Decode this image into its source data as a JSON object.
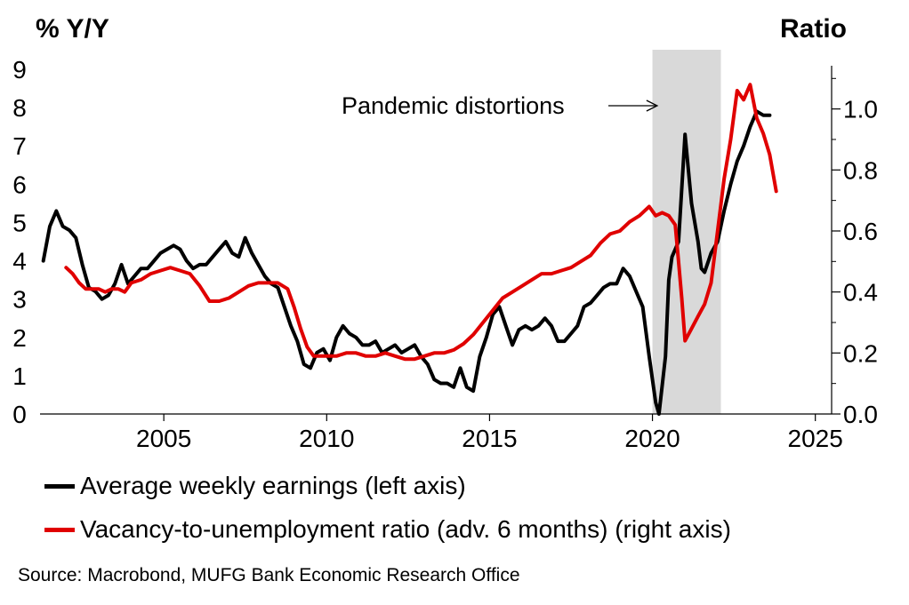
{
  "chart_data": {
    "type": "line",
    "left_axis_label": "% Y/Y",
    "right_axis_label": "Ratio",
    "x_range": [
      2001.2,
      2025.5
    ],
    "x_ticks": [
      2005,
      2010,
      2015,
      2020,
      2025
    ],
    "y_left_range": [
      0,
      9
    ],
    "y_left_ticks": [
      0,
      1,
      2,
      3,
      4,
      5,
      6,
      7,
      8,
      9
    ],
    "y_right_range": [
      0,
      1.13
    ],
    "y_right_ticks": [
      "0.0",
      "0.2",
      "0.4",
      "0.6",
      "0.8",
      "1.0"
    ],
    "shaded_region": {
      "from": 2020.0,
      "to": 2022.1,
      "color": "#d9d9d9"
    },
    "annotation": {
      "text": "Pandemic distortions",
      "points_to": 2020.2
    },
    "grid": false,
    "legend_placement": "bottom",
    "series": [
      {
        "name": "Average weekly earnings (left axis)",
        "axis": "left",
        "color": "#000000",
        "x": [
          2001.3,
          2001.5,
          2001.7,
          2001.9,
          2002.1,
          2002.3,
          2002.5,
          2002.7,
          2002.9,
          2003.1,
          2003.3,
          2003.5,
          2003.7,
          2003.9,
          2004.1,
          2004.3,
          2004.5,
          2004.7,
          2004.9,
          2005.1,
          2005.3,
          2005.5,
          2005.7,
          2005.9,
          2006.1,
          2006.3,
          2006.5,
          2006.7,
          2006.9,
          2007.1,
          2007.3,
          2007.5,
          2007.7,
          2007.9,
          2008.1,
          2008.3,
          2008.5,
          2008.7,
          2008.9,
          2009.1,
          2009.3,
          2009.5,
          2009.7,
          2009.9,
          2010.1,
          2010.3,
          2010.5,
          2010.7,
          2010.9,
          2011.1,
          2011.3,
          2011.5,
          2011.7,
          2011.9,
          2012.1,
          2012.3,
          2012.5,
          2012.7,
          2012.9,
          2013.1,
          2013.3,
          2013.5,
          2013.7,
          2013.9,
          2014.1,
          2014.3,
          2014.5,
          2014.7,
          2014.9,
          2015.1,
          2015.3,
          2015.5,
          2015.7,
          2015.9,
          2016.1,
          2016.3,
          2016.5,
          2016.7,
          2016.9,
          2017.1,
          2017.3,
          2017.5,
          2017.7,
          2017.9,
          2018.1,
          2018.3,
          2018.5,
          2018.7,
          2018.9,
          2019.1,
          2019.3,
          2019.5,
          2019.7,
          2019.9,
          2020.1,
          2020.2,
          2020.4,
          2020.5,
          2020.6,
          2020.8,
          2021.0,
          2021.2,
          2021.4,
          2021.5,
          2021.6,
          2021.8,
          2022.0,
          2022.2,
          2022.4,
          2022.6,
          2022.8,
          2023.0,
          2023.2,
          2023.4,
          2023.6
        ],
        "values": [
          4.0,
          4.9,
          5.3,
          4.9,
          4.8,
          4.6,
          3.9,
          3.3,
          3.2,
          3.0,
          3.1,
          3.4,
          3.9,
          3.4,
          3.6,
          3.8,
          3.8,
          4.0,
          4.2,
          4.3,
          4.4,
          4.3,
          4.0,
          3.8,
          3.9,
          3.9,
          4.1,
          4.3,
          4.5,
          4.2,
          4.1,
          4.6,
          4.2,
          3.9,
          3.6,
          3.4,
          3.3,
          2.8,
          2.3,
          1.9,
          1.3,
          1.2,
          1.6,
          1.7,
          1.4,
          2.0,
          2.3,
          2.1,
          2.0,
          1.8,
          1.8,
          1.9,
          1.6,
          1.7,
          1.8,
          1.6,
          1.7,
          1.8,
          1.5,
          1.3,
          0.9,
          0.8,
          0.8,
          0.7,
          1.2,
          0.7,
          0.6,
          1.5,
          2.0,
          2.6,
          2.8,
          2.3,
          1.8,
          2.2,
          2.3,
          2.2,
          2.3,
          2.5,
          2.3,
          1.9,
          1.9,
          2.1,
          2.3,
          2.8,
          2.9,
          3.1,
          3.3,
          3.4,
          3.4,
          3.8,
          3.6,
          3.2,
          2.8,
          1.5,
          0.3,
          0.0,
          1.5,
          3.5,
          4.1,
          4.5,
          7.3,
          5.5,
          4.5,
          3.8,
          3.7,
          4.2,
          4.5,
          5.3,
          6.0,
          6.6,
          7.0,
          7.5,
          7.9,
          7.8,
          7.8
        ]
      },
      {
        "name": "Vacancy-to-unemployment ratio (adv. 6 months) (right axis)",
        "axis": "right",
        "color": "#e00000",
        "x": [
          2002.0,
          2002.2,
          2002.4,
          2002.6,
          2002.8,
          2003.0,
          2003.2,
          2003.4,
          2003.6,
          2003.8,
          2004.0,
          2004.3,
          2004.6,
          2004.9,
          2005.2,
          2005.5,
          2005.8,
          2006.1,
          2006.4,
          2006.7,
          2007.0,
          2007.3,
          2007.6,
          2007.9,
          2008.2,
          2008.5,
          2008.8,
          2009.0,
          2009.2,
          2009.4,
          2009.6,
          2009.8,
          2010.0,
          2010.3,
          2010.6,
          2010.9,
          2011.2,
          2011.5,
          2011.8,
          2012.1,
          2012.4,
          2012.7,
          2013.0,
          2013.3,
          2013.6,
          2013.9,
          2014.2,
          2014.5,
          2014.8,
          2015.1,
          2015.4,
          2015.7,
          2016.0,
          2016.3,
          2016.6,
          2016.9,
          2017.2,
          2017.5,
          2017.8,
          2018.1,
          2018.4,
          2018.7,
          2019.0,
          2019.3,
          2019.6,
          2019.9,
          2020.1,
          2020.3,
          2020.5,
          2020.7,
          2020.8,
          2020.9,
          2021.0,
          2021.2,
          2021.4,
          2021.6,
          2021.8,
          2022.0,
          2022.2,
          2022.4,
          2022.6,
          2022.8,
          2023.0,
          2023.2,
          2023.4,
          2023.6,
          2023.8
        ],
        "values": [
          0.48,
          0.46,
          0.43,
          0.41,
          0.41,
          0.41,
          0.4,
          0.41,
          0.41,
          0.4,
          0.43,
          0.44,
          0.46,
          0.47,
          0.48,
          0.47,
          0.46,
          0.42,
          0.37,
          0.37,
          0.38,
          0.4,
          0.42,
          0.43,
          0.43,
          0.43,
          0.41,
          0.35,
          0.28,
          0.22,
          0.19,
          0.19,
          0.19,
          0.19,
          0.2,
          0.2,
          0.19,
          0.19,
          0.2,
          0.19,
          0.18,
          0.18,
          0.19,
          0.2,
          0.2,
          0.21,
          0.23,
          0.26,
          0.3,
          0.34,
          0.38,
          0.4,
          0.42,
          0.44,
          0.46,
          0.46,
          0.47,
          0.48,
          0.5,
          0.52,
          0.56,
          0.59,
          0.6,
          0.63,
          0.65,
          0.68,
          0.65,
          0.66,
          0.65,
          0.62,
          0.5,
          0.38,
          0.24,
          0.28,
          0.32,
          0.36,
          0.43,
          0.6,
          0.77,
          0.9,
          1.06,
          1.03,
          1.08,
          0.97,
          0.92,
          0.85,
          0.73
        ]
      }
    ]
  },
  "source": "Source: Macrobond, MUFG Bank Economic Research Office"
}
